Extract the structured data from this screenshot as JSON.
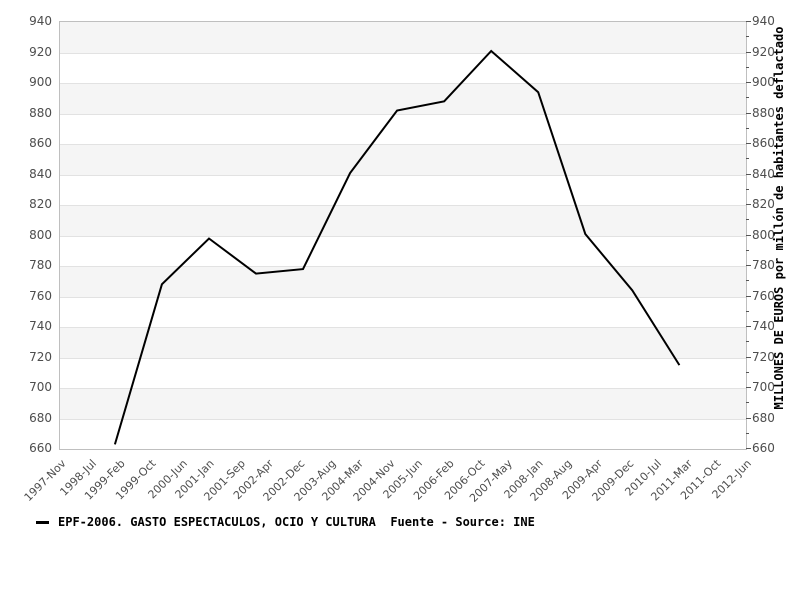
{
  "chart_data": {
    "type": "line",
    "title": "",
    "legend": "EPF-2006. GASTO ESPECTACULOS, OCIO Y CULTURA  Fuente - Source: INE",
    "legend_position": "bottom-left",
    "ylabel_right": "MILLONES DE EUROS por millón de habitantes deflactado",
    "xlabel": "",
    "ylim": [
      660,
      940
    ],
    "ytick_step": 20,
    "ytick_minor_step": 10,
    "grid": "alternating-horizontal-bands",
    "x_axis": {
      "start": "1997-Nov",
      "end": "2012-Jun",
      "tick_labels": [
        "1997-Nov",
        "1998-Jul",
        "1999-Feb",
        "1999-Oct",
        "2000-Jun",
        "2001-Jan",
        "2001-Sep",
        "2002-Apr",
        "2002-Dec",
        "2003-Aug",
        "2004-Mar",
        "2004-Nov",
        "2005-Jun",
        "2006-Feb",
        "2006-Oct",
        "2007-May",
        "2008-Jan",
        "2008-Aug",
        "2009-Apr",
        "2009-Dec",
        "2010-Jul",
        "2011-Mar",
        "2011-Oct",
        "2012-Jun"
      ]
    },
    "series": [
      {
        "name": "EPF-2006. GASTO ESPECTACULOS, OCIO Y CULTURA",
        "color": "#000000",
        "points": [
          {
            "date": "1999-Jan",
            "value": 663
          },
          {
            "date": "2000-Jan",
            "value": 768
          },
          {
            "date": "2001-Jan",
            "value": 798
          },
          {
            "date": "2002-Jan",
            "value": 775
          },
          {
            "date": "2003-Jan",
            "value": 778
          },
          {
            "date": "2004-Jan",
            "value": 841
          },
          {
            "date": "2005-Jan",
            "value": 882
          },
          {
            "date": "2006-Jan",
            "value": 888
          },
          {
            "date": "2007-Jan",
            "value": 921
          },
          {
            "date": "2008-Jan",
            "value": 894
          },
          {
            "date": "2009-Jan",
            "value": 801
          },
          {
            "date": "2010-Jan",
            "value": 764
          },
          {
            "date": "2011-Jan",
            "value": 715
          }
        ]
      }
    ],
    "colors": {
      "band_gray": "#f5f5f5",
      "band_white": "#ffffff",
      "gridline": "#e2e2e2",
      "frame": "#bfbfbf",
      "tick_mark": "#555555",
      "tick_label": "#4d4d4d",
      "line": "#000000",
      "text": "#000000"
    }
  }
}
